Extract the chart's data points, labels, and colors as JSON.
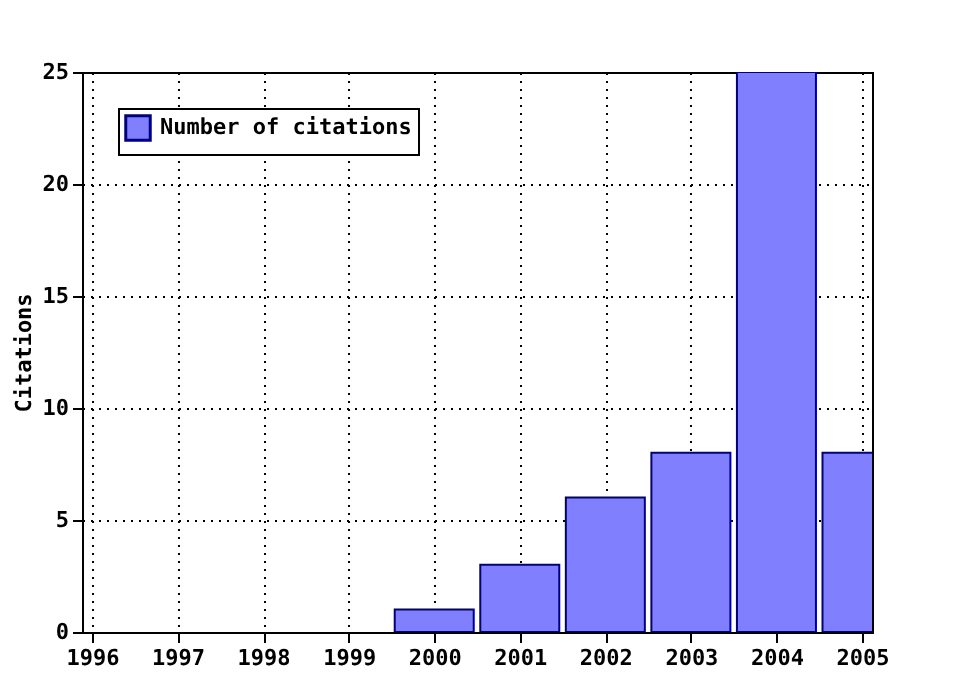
{
  "chart_data": {
    "type": "bar",
    "ylabel": "Citations",
    "x": [
      2000,
      2001,
      2002,
      2003,
      2004,
      2005
    ],
    "series": [
      {
        "name": "Number of citations",
        "color": "#8080ff",
        "values": [
          1,
          3,
          6,
          8,
          25,
          8
        ]
      }
    ],
    "xlim": [
      1996,
      2005
    ],
    "xticks": [
      1996,
      1997,
      1998,
      1999,
      2000,
      2001,
      2002,
      2003,
      2004,
      2005
    ],
    "ylim": [
      0,
      25
    ],
    "yticks": [
      0,
      5,
      10,
      15,
      20,
      25
    ],
    "grid": true,
    "legend": "top left",
    "line_style": "dotted"
  }
}
